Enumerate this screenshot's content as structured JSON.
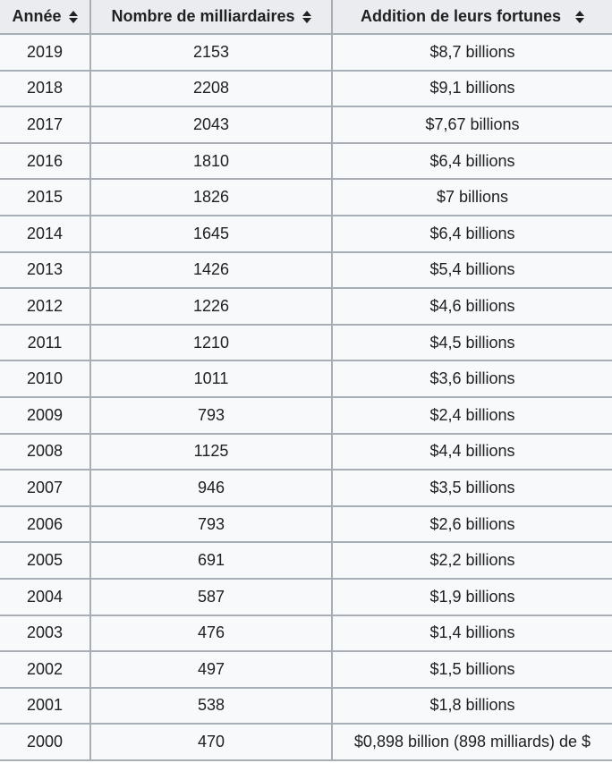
{
  "chart_data": {
    "type": "table",
    "columns": [
      "Année",
      "Nombre de milliardaires",
      "Addition de leurs fortunes"
    ],
    "rows": [
      [
        "2019",
        "2153",
        "$8,7 billions"
      ],
      [
        "2018",
        "2208",
        "$9,1 billions"
      ],
      [
        "2017",
        "2043",
        "$7,67 billions"
      ],
      [
        "2016",
        "1810",
        "$6,4 billions"
      ],
      [
        "2015",
        "1826",
        "$7 billions"
      ],
      [
        "2014",
        "1645",
        "$6,4 billions"
      ],
      [
        "2013",
        "1426",
        "$5,4 billions"
      ],
      [
        "2012",
        "1226",
        "$4,6 billions"
      ],
      [
        "2011",
        "1210",
        "$4,5 billions"
      ],
      [
        "2010",
        "1011",
        "$3,6 billions"
      ],
      [
        "2009",
        "793",
        "$2,4 billions"
      ],
      [
        "2008",
        "1125",
        "$4,4 billions"
      ],
      [
        "2007",
        "946",
        "$3,5 billions"
      ],
      [
        "2006",
        "793",
        "$2,6 billions"
      ],
      [
        "2005",
        "691",
        "$2,2 billions"
      ],
      [
        "2004",
        "587",
        "$1,9 billions"
      ],
      [
        "2003",
        "476",
        "$1,4 billions"
      ],
      [
        "2002",
        "497",
        "$1,5 billions"
      ],
      [
        "2001",
        "538",
        "$1,8 billions"
      ],
      [
        "2000",
        "470",
        "$0,898 billion (898 milliards) de $"
      ]
    ]
  },
  "icons": {
    "sort": "sort-arrows-icon"
  },
  "colors": {
    "header_bg": "#eaecf0",
    "row_bg": "#f8f9fa",
    "border": "#a8aeb6",
    "text": "#202122"
  }
}
